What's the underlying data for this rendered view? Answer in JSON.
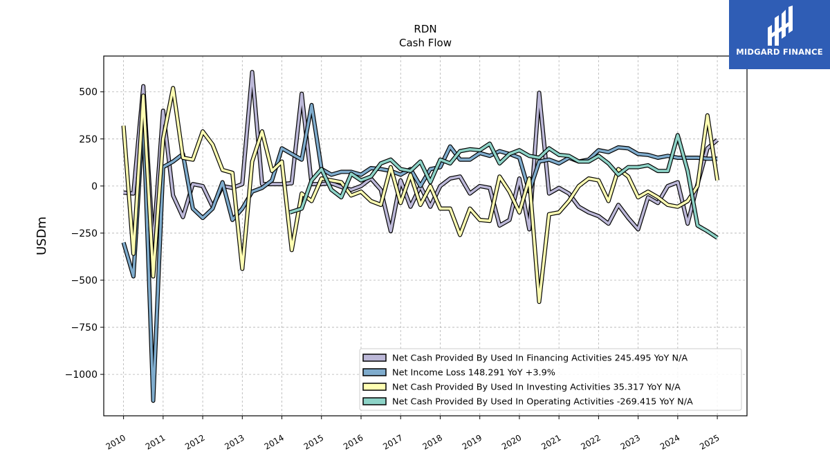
{
  "chart_data": {
    "type": "line",
    "title": "RDN",
    "subtitle": "Cash Flow",
    "xlabel": "",
    "ylabel": "USDm",
    "xlim": [
      2009.5,
      2025.75
    ],
    "ylim": [
      -1220,
      690
    ],
    "yticks": [
      500,
      250,
      0,
      -250,
      -500,
      -750,
      -1000
    ],
    "ytick_labels": [
      "500",
      "250",
      "0",
      "−250",
      "−500",
      "−750",
      "−1000"
    ],
    "xticks": [
      "2010",
      "2011",
      "2012",
      "2013",
      "2014",
      "2015",
      "2016",
      "2017",
      "2018",
      "2019",
      "2020",
      "2021",
      "2022",
      "2023",
      "2024",
      "2025"
    ],
    "grid": true,
    "legend_position": "lower-right",
    "series": [
      {
        "name": "Net Cash Provided By Used In Financing Activities",
        "legend_label": "Net Cash Provided By Used In Financing Activities  245.495 YoY N/A",
        "color": "#bcb8d8",
        "x": [
          2010.0,
          2010.25,
          2010.5,
          2010.75,
          2011.0,
          2011.25,
          2011.5,
          2011.75,
          2012.0,
          2012.25,
          2012.5,
          2012.75,
          2013.0,
          2013.25,
          2013.5,
          2013.75,
          2014.0,
          2014.25,
          2014.5,
          2014.75,
          2015.0,
          2015.25,
          2015.5,
          2015.75,
          2016.0,
          2016.25,
          2016.5,
          2016.75,
          2017.0,
          2017.25,
          2017.5,
          2017.75,
          2018.0,
          2018.25,
          2018.5,
          2018.75,
          2019.0,
          2019.25,
          2019.5,
          2019.75,
          2020.0,
          2020.25,
          2020.5,
          2020.75,
          2021.0,
          2021.25,
          2021.5,
          2021.75,
          2022.0,
          2022.25,
          2022.5,
          2022.75,
          2023.0,
          2023.25,
          2023.5,
          2023.75,
          2024.0,
          2024.25,
          2024.5,
          2024.75,
          2025.0
        ],
        "values": [
          -35,
          -40,
          530,
          -320,
          400,
          -50,
          -165,
          10,
          0,
          -110,
          0,
          -10,
          10,
          605,
          10,
          10,
          10,
          15,
          490,
          10,
          10,
          15,
          -5,
          -20,
          0,
          40,
          -20,
          -240,
          30,
          -110,
          0,
          -110,
          0,
          40,
          50,
          -40,
          0,
          -10,
          -210,
          -180,
          40,
          -230,
          495,
          -40,
          -10,
          -40,
          -110,
          -140,
          -160,
          -200,
          -100,
          -170,
          -230,
          -60,
          -90,
          0,
          20,
          -200,
          10,
          200,
          245
        ]
      },
      {
        "name": "Net Income Loss",
        "legend_label": "Net Income Loss  148.291 YoY +3.9%",
        "color": "#7faccd",
        "x": [
          2010.0,
          2010.25,
          2010.5,
          2010.75,
          2011.0,
          2011.25,
          2011.5,
          2011.75,
          2012.0,
          2012.25,
          2012.5,
          2012.75,
          2013.0,
          2013.25,
          2013.5,
          2013.75,
          2014.0,
          2014.25,
          2014.5,
          2014.75,
          2015.0,
          2015.25,
          2015.5,
          2015.75,
          2016.0,
          2016.25,
          2016.5,
          2016.75,
          2017.0,
          2017.25,
          2017.5,
          2017.75,
          2018.0,
          2018.25,
          2018.5,
          2018.75,
          2019.0,
          2019.25,
          2019.5,
          2019.75,
          2020.0,
          2020.25,
          2020.5,
          2020.75,
          2021.0,
          2021.25,
          2021.5,
          2021.75,
          2022.0,
          2022.25,
          2022.5,
          2022.75,
          2023.0,
          2023.25,
          2023.5,
          2023.75,
          2024.0,
          2024.25,
          2024.5,
          2024.75,
          2025.0
        ],
        "values": [
          -300,
          -480,
          380,
          -1140,
          100,
          130,
          170,
          -120,
          -170,
          -120,
          20,
          -180,
          -120,
          -30,
          -10,
          30,
          200,
          170,
          140,
          430,
          90,
          60,
          75,
          75,
          60,
          95,
          90,
          80,
          60,
          90,
          0,
          90,
          100,
          210,
          140,
          140,
          175,
          160,
          185,
          170,
          150,
          -30,
          130,
          140,
          120,
          150,
          130,
          140,
          190,
          180,
          205,
          200,
          170,
          165,
          150,
          160,
          150,
          150,
          150,
          145,
          145
        ]
      },
      {
        "name": "Net Cash Provided By Used In Investing Activities",
        "legend_label": "Net Cash Provided By Used In Investing Activities  35.317 YoY N/A",
        "color": "#ffffb3",
        "x": [
          2010.0,
          2010.25,
          2010.5,
          2010.75,
          2011.0,
          2011.25,
          2011.5,
          2011.75,
          2012.0,
          2012.25,
          2012.5,
          2012.75,
          2013.0,
          2013.25,
          2013.5,
          2013.75,
          2014.0,
          2014.25,
          2014.5,
          2014.75,
          2015.0,
          2015.25,
          2015.5,
          2015.75,
          2016.0,
          2016.25,
          2016.5,
          2016.75,
          2017.0,
          2017.25,
          2017.5,
          2017.75,
          2018.0,
          2018.25,
          2018.5,
          2018.75,
          2019.0,
          2019.25,
          2019.5,
          2019.75,
          2020.0,
          2020.25,
          2020.5,
          2020.75,
          2021.0,
          2021.25,
          2021.5,
          2021.75,
          2022.0,
          2022.25,
          2022.5,
          2022.75,
          2023.0,
          2023.25,
          2023.5,
          2023.75,
          2024.0,
          2024.25,
          2024.5,
          2024.75,
          2025.0
        ],
        "values": [
          320,
          -360,
          480,
          -480,
          250,
          520,
          150,
          140,
          290,
          220,
          85,
          70,
          -440,
          130,
          290,
          80,
          130,
          -340,
          -40,
          -80,
          40,
          30,
          20,
          -50,
          -30,
          -80,
          -100,
          100,
          -90,
          60,
          -100,
          0,
          -120,
          -120,
          -260,
          -120,
          -180,
          -185,
          50,
          -30,
          -140,
          40,
          -615,
          -150,
          -140,
          -80,
          0,
          40,
          30,
          -80,
          90,
          50,
          -60,
          -30,
          -60,
          -100,
          -110,
          -80,
          0,
          375,
          30
        ]
      },
      {
        "name": "Net Cash Provided By Used In Operating Activities",
        "legend_label": "Net Cash Provided By Used In Operating Activities  -269.415 YoY N/A",
        "color": "#8dd3c7",
        "x": [
          2014.2,
          2014.5,
          2014.75,
          2015.0,
          2015.25,
          2015.5,
          2015.75,
          2016.0,
          2016.25,
          2016.5,
          2016.75,
          2017.0,
          2017.25,
          2017.5,
          2017.75,
          2018.0,
          2018.25,
          2018.5,
          2018.75,
          2019.0,
          2019.25,
          2019.5,
          2019.75,
          2020.0,
          2020.25,
          2020.5,
          2020.75,
          2021.0,
          2021.25,
          2021.5,
          2021.75,
          2022.0,
          2022.25,
          2022.5,
          2022.75,
          2023.0,
          2023.25,
          2023.5,
          2023.75,
          2024.0,
          2024.25,
          2024.5,
          2024.75,
          2025.0
        ],
        "values": [
          -140,
          -120,
          30,
          90,
          -20,
          -60,
          65,
          30,
          50,
          120,
          140,
          90,
          80,
          130,
          20,
          140,
          120,
          185,
          195,
          190,
          225,
          120,
          170,
          190,
          160,
          150,
          200,
          165,
          160,
          130,
          130,
          160,
          120,
          60,
          100,
          100,
          110,
          80,
          80,
          270,
          80,
          -210,
          -240,
          -275
        ]
      }
    ]
  }
}
